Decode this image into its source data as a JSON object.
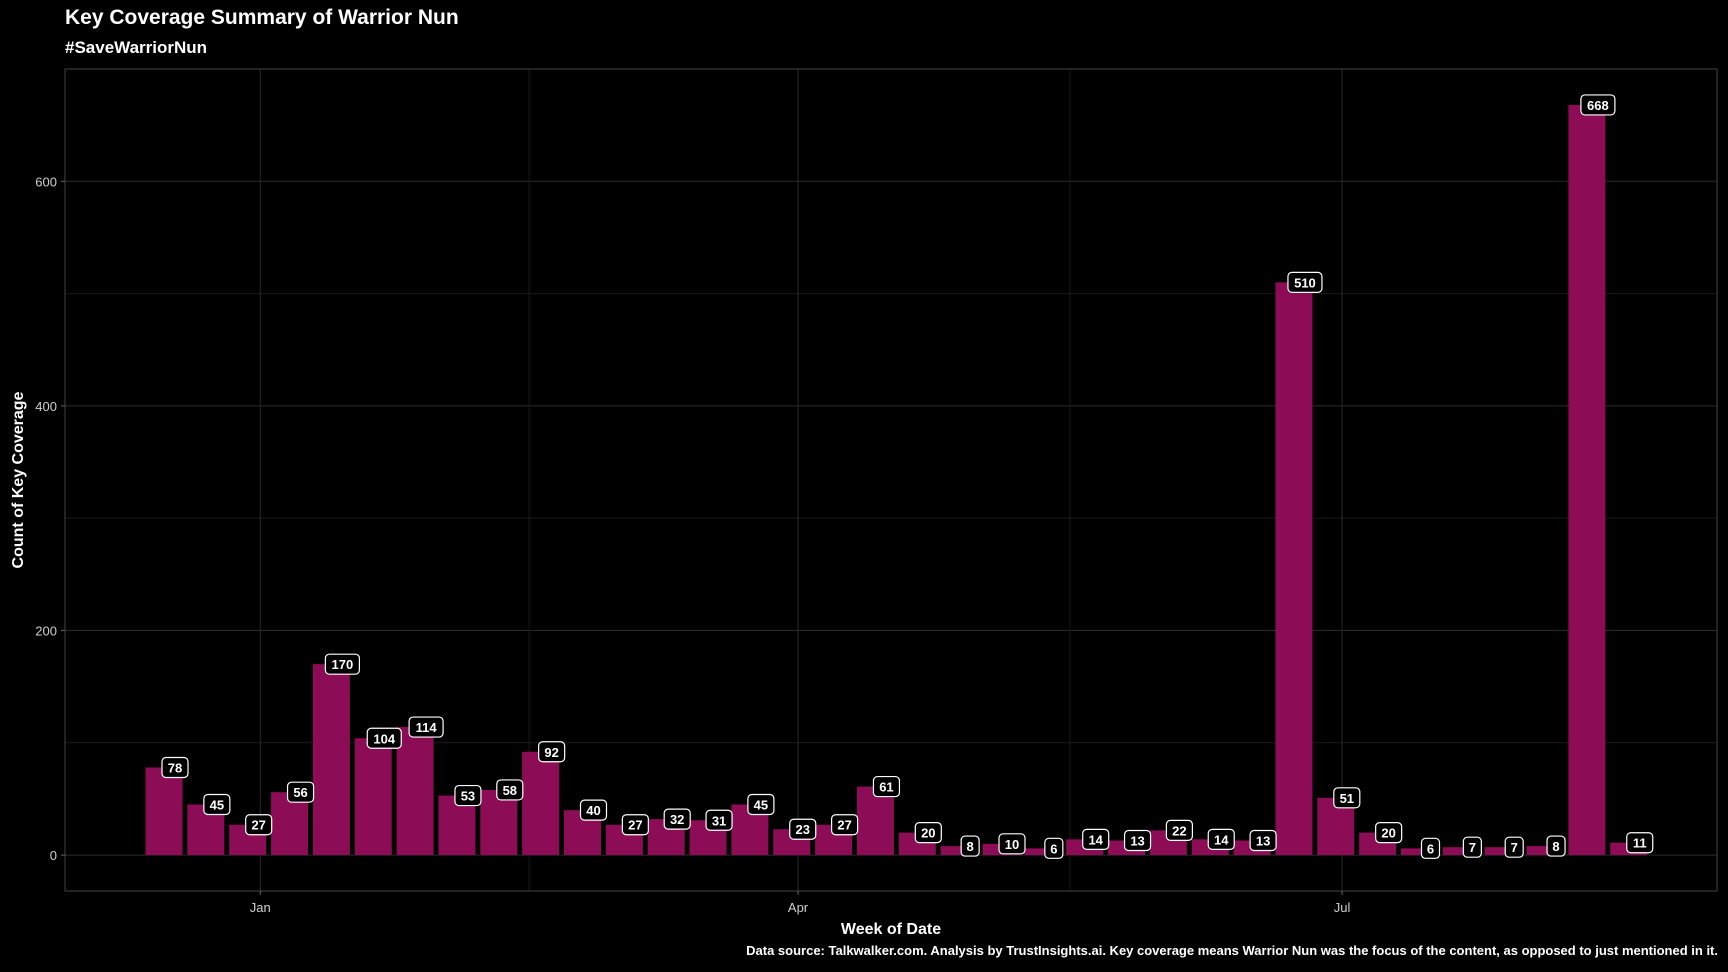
{
  "chart_data": {
    "type": "bar",
    "title": "Key Coverage Summary of Warrior Nun",
    "subtitle": "#SaveWarriorNun",
    "caption": "Data source: Talkwalker.com. Analysis by TrustInsights.ai. Key coverage means Warrior Nun was the focus of the content, as opposed to just mentioned in it.",
    "xlabel": "Week of Date",
    "ylabel": "Count of Key Coverage",
    "x_ticks": [
      {
        "label": "Jan",
        "index": 2.3
      },
      {
        "label": "Apr",
        "index": 15.15
      },
      {
        "label": "Jul",
        "index": 28.15
      }
    ],
    "y_ticks": [
      0,
      200,
      400,
      600
    ],
    "ylim": [
      -32,
      700
    ],
    "grid": true,
    "bar_color": "#8c0c55",
    "values": [
      78,
      45,
      27,
      56,
      170,
      104,
      114,
      53,
      58,
      92,
      40,
      27,
      32,
      31,
      45,
      23,
      27,
      61,
      20,
      8,
      10,
      6,
      14,
      13,
      22,
      14,
      13,
      510,
      51,
      20,
      6,
      7,
      7,
      8,
      668,
      11
    ]
  }
}
